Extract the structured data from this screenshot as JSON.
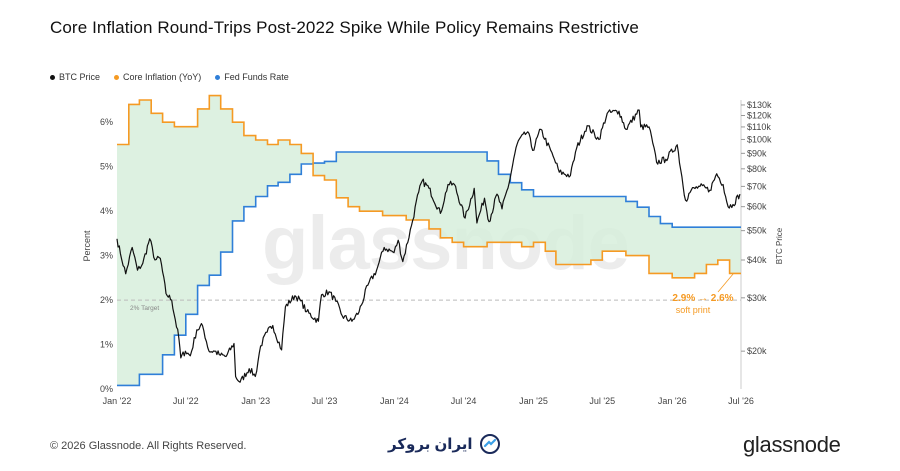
{
  "title": "Core Inflation Round-Trips Post-2022 Spike While Policy Remains Restrictive",
  "legend": {
    "btc": "BTC Price",
    "core": "Core Inflation (YoY)",
    "fed": "Fed Funds Rate"
  },
  "colors": {
    "btc": "#111111",
    "core": "#f59a23",
    "fed": "#2f7fd8",
    "fill": "#d7efdc",
    "target": "#bbbbbb",
    "annotation": "#f59a23"
  },
  "watermark": "glassnode",
  "footer": {
    "copyright": "© 2026 Glassnode. All Rights Reserved.",
    "partner": "ایران بروکر",
    "logo": "glassnode"
  },
  "chart_data": {
    "type": "line",
    "x_ticks": [
      "Jan '22",
      "Jul '22",
      "Jan '23",
      "Jul '23",
      "Jan '24",
      "Jul '24",
      "Jan '25",
      "Jul '25",
      "Jan '26",
      "Jul '26"
    ],
    "y_left": {
      "label": "Percent",
      "ticks": [
        "0%",
        "1%",
        "2%",
        "3%",
        "4%",
        "5%",
        "6%"
      ],
      "range": [
        0,
        6.5
      ]
    },
    "y_right": {
      "label": "BTC Price",
      "scale": "log",
      "ticks": [
        "$20k",
        "$30k",
        "$40k",
        "$50k",
        "$60k",
        "$70k",
        "$80k",
        "$90k",
        "$100k",
        "$110k",
        "$120k",
        "$130k"
      ],
      "range": [
        15000,
        135000
      ]
    },
    "target_line": {
      "value": 2.0,
      "label": "2% Target"
    },
    "annotation": {
      "value_text": "2.9% → 2.6%",
      "note": "soft print"
    },
    "series": [
      {
        "name": "Core Inflation (YoY)",
        "axis": "left",
        "step": true,
        "points": [
          [
            "2022-01",
            5.5
          ],
          [
            "2022-02",
            6.4
          ],
          [
            "2022-03",
            6.5
          ],
          [
            "2022-04",
            6.2
          ],
          [
            "2022-05",
            6.0
          ],
          [
            "2022-06",
            5.9
          ],
          [
            "2022-07",
            5.9
          ],
          [
            "2022-08",
            6.3
          ],
          [
            "2022-09",
            6.6
          ],
          [
            "2022-10",
            6.3
          ],
          [
            "2022-11",
            6.0
          ],
          [
            "2022-12",
            5.7
          ],
          [
            "2023-01",
            5.6
          ],
          [
            "2023-02",
            5.5
          ],
          [
            "2023-03",
            5.6
          ],
          [
            "2023-04",
            5.5
          ],
          [
            "2023-05",
            5.3
          ],
          [
            "2023-06",
            4.8
          ],
          [
            "2023-07",
            4.7
          ],
          [
            "2023-08",
            4.3
          ],
          [
            "2023-09",
            4.1
          ],
          [
            "2023-10",
            4.0
          ],
          [
            "2023-11",
            4.0
          ],
          [
            "2023-12",
            3.9
          ],
          [
            "2024-01",
            3.9
          ],
          [
            "2024-02",
            3.8
          ],
          [
            "2024-03",
            3.8
          ],
          [
            "2024-04",
            3.6
          ],
          [
            "2024-05",
            3.4
          ],
          [
            "2024-06",
            3.3
          ],
          [
            "2024-07",
            3.2
          ],
          [
            "2024-08",
            3.2
          ],
          [
            "2024-09",
            3.3
          ],
          [
            "2024-10",
            3.3
          ],
          [
            "2024-11",
            3.3
          ],
          [
            "2024-12",
            3.2
          ],
          [
            "2025-01",
            3.3
          ],
          [
            "2025-02",
            3.1
          ],
          [
            "2025-03",
            2.8
          ],
          [
            "2025-04",
            2.8
          ],
          [
            "2025-05",
            2.8
          ],
          [
            "2025-06",
            2.9
          ],
          [
            "2025-07",
            3.1
          ],
          [
            "2025-08",
            3.1
          ],
          [
            "2025-09",
            3.0
          ],
          [
            "2025-10",
            3.0
          ],
          [
            "2025-11",
            2.6
          ],
          [
            "2025-12",
            2.6
          ],
          [
            "2026-01",
            2.5
          ],
          [
            "2026-02",
            2.5
          ],
          [
            "2026-03",
            2.6
          ],
          [
            "2026-04",
            2.8
          ],
          [
            "2026-05",
            2.9
          ],
          [
            "2026-06",
            2.6
          ]
        ]
      },
      {
        "name": "Fed Funds Rate",
        "axis": "left",
        "step": true,
        "points": [
          [
            "2022-01",
            0.08
          ],
          [
            "2022-03",
            0.33
          ],
          [
            "2022-05",
            0.77
          ],
          [
            "2022-06",
            1.21
          ],
          [
            "2022-07",
            1.68
          ],
          [
            "2022-08",
            2.33
          ],
          [
            "2022-09",
            2.56
          ],
          [
            "2022-10",
            3.08
          ],
          [
            "2022-11",
            3.78
          ],
          [
            "2022-12",
            4.1
          ],
          [
            "2023-01",
            4.33
          ],
          [
            "2023-02",
            4.57
          ],
          [
            "2023-03",
            4.65
          ],
          [
            "2023-04",
            4.83
          ],
          [
            "2023-05",
            5.06
          ],
          [
            "2023-06",
            5.08
          ],
          [
            "2023-07",
            5.12
          ],
          [
            "2023-08",
            5.33
          ],
          [
            "2024-08",
            5.33
          ],
          [
            "2024-09",
            5.13
          ],
          [
            "2024-10",
            4.83
          ],
          [
            "2024-11",
            4.64
          ],
          [
            "2024-12",
            4.48
          ],
          [
            "2025-01",
            4.33
          ],
          [
            "2025-09",
            4.22
          ],
          [
            "2025-10",
            4.09
          ],
          [
            "2025-11",
            3.88
          ],
          [
            "2025-12",
            3.72
          ],
          [
            "2026-01",
            3.64
          ],
          [
            "2026-07",
            3.64
          ]
        ]
      },
      {
        "name": "BTC Price",
        "axis": "right",
        "step": false,
        "points": [
          [
            "2022-01-01",
            47000
          ],
          [
            "2022-01-10",
            42000
          ],
          [
            "2022-01-24",
            36000
          ],
          [
            "2022-02-10",
            44000
          ],
          [
            "2022-02-24",
            37000
          ],
          [
            "2022-03-10",
            39000
          ],
          [
            "2022-03-28",
            47000
          ],
          [
            "2022-04-11",
            40000
          ],
          [
            "2022-04-25",
            40500
          ],
          [
            "2022-05-10",
            31000
          ],
          [
            "2022-05-25",
            29500
          ],
          [
            "2022-06-13",
            22000
          ],
          [
            "2022-06-18",
            19000
          ],
          [
            "2022-06-30",
            20000
          ],
          [
            "2022-07-13",
            19300
          ],
          [
            "2022-07-30",
            23500
          ],
          [
            "2022-08-14",
            24300
          ],
          [
            "2022-08-31",
            20000
          ],
          [
            "2022-09-15",
            20000
          ],
          [
            "2022-09-30",
            19400
          ],
          [
            "2022-10-15",
            19200
          ],
          [
            "2022-11-05",
            21200
          ],
          [
            "2022-11-09",
            16500
          ],
          [
            "2022-11-21",
            15800
          ],
          [
            "2022-12-15",
            17500
          ],
          [
            "2022-12-31",
            16500
          ],
          [
            "2023-01-14",
            20800
          ],
          [
            "2023-01-31",
            23100
          ],
          [
            "2023-02-15",
            24300
          ],
          [
            "2023-03-10",
            20200
          ],
          [
            "2023-03-20",
            28000
          ],
          [
            "2023-04-14",
            30500
          ],
          [
            "2023-04-30",
            29300
          ],
          [
            "2023-05-15",
            27000
          ],
          [
            "2023-06-15",
            25100
          ],
          [
            "2023-06-23",
            30700
          ],
          [
            "2023-07-13",
            31400
          ],
          [
            "2023-07-31",
            29200
          ],
          [
            "2023-08-17",
            26100
          ],
          [
            "2023-09-11",
            25100
          ],
          [
            "2023-09-30",
            27000
          ],
          [
            "2023-10-23",
            33000
          ],
          [
            "2023-11-15",
            37000
          ],
          [
            "2023-12-05",
            44000
          ],
          [
            "2023-12-31",
            42300
          ],
          [
            "2024-01-11",
            46500
          ],
          [
            "2024-01-23",
            39500
          ],
          [
            "2024-02-15",
            52000
          ],
          [
            "2024-03-05",
            67000
          ],
          [
            "2024-03-14",
            73000
          ],
          [
            "2024-04-01",
            69000
          ],
          [
            "2024-05-01",
            57000
          ],
          [
            "2024-05-21",
            71000
          ],
          [
            "2024-06-07",
            71000
          ],
          [
            "2024-07-05",
            55000
          ],
          [
            "2024-07-29",
            69000
          ],
          [
            "2024-08-05",
            53000
          ],
          [
            "2024-08-25",
            64000
          ],
          [
            "2024-09-06",
            53500
          ],
          [
            "2024-09-27",
            66000
          ],
          [
            "2024-10-10",
            59000
          ],
          [
            "2024-10-29",
            72000
          ],
          [
            "2024-11-13",
            90000
          ],
          [
            "2024-11-22",
            99000
          ],
          [
            "2024-12-17",
            106000
          ],
          [
            "2024-12-30",
            92000
          ],
          [
            "2025-01-20",
            108000
          ],
          [
            "2025-02-25",
            86000
          ],
          [
            "2025-03-10",
            78000
          ],
          [
            "2025-04-08",
            76000
          ],
          [
            "2025-04-25",
            94000
          ],
          [
            "2025-05-22",
            111000
          ],
          [
            "2025-06-22",
            100000
          ],
          [
            "2025-07-14",
            122000
          ],
          [
            "2025-08-14",
            124000
          ],
          [
            "2025-09-01",
            108000
          ],
          [
            "2025-10-06",
            125000
          ],
          [
            "2025-10-10",
            110000
          ],
          [
            "2025-11-01",
            110000
          ],
          [
            "2025-11-21",
            84000
          ],
          [
            "2025-12-15",
            86000
          ],
          [
            "2026-01-14",
            96000
          ],
          [
            "2026-02-05",
            63000
          ],
          [
            "2026-02-20",
            68000
          ],
          [
            "2026-03-15",
            70000
          ],
          [
            "2026-04-10",
            68000
          ],
          [
            "2026-04-28",
            77000
          ],
          [
            "2026-05-15",
            71000
          ],
          [
            "2026-05-28",
            60000
          ],
          [
            "2026-06-10",
            61000
          ],
          [
            "2026-06-28",
            66000
          ]
        ]
      }
    ]
  }
}
